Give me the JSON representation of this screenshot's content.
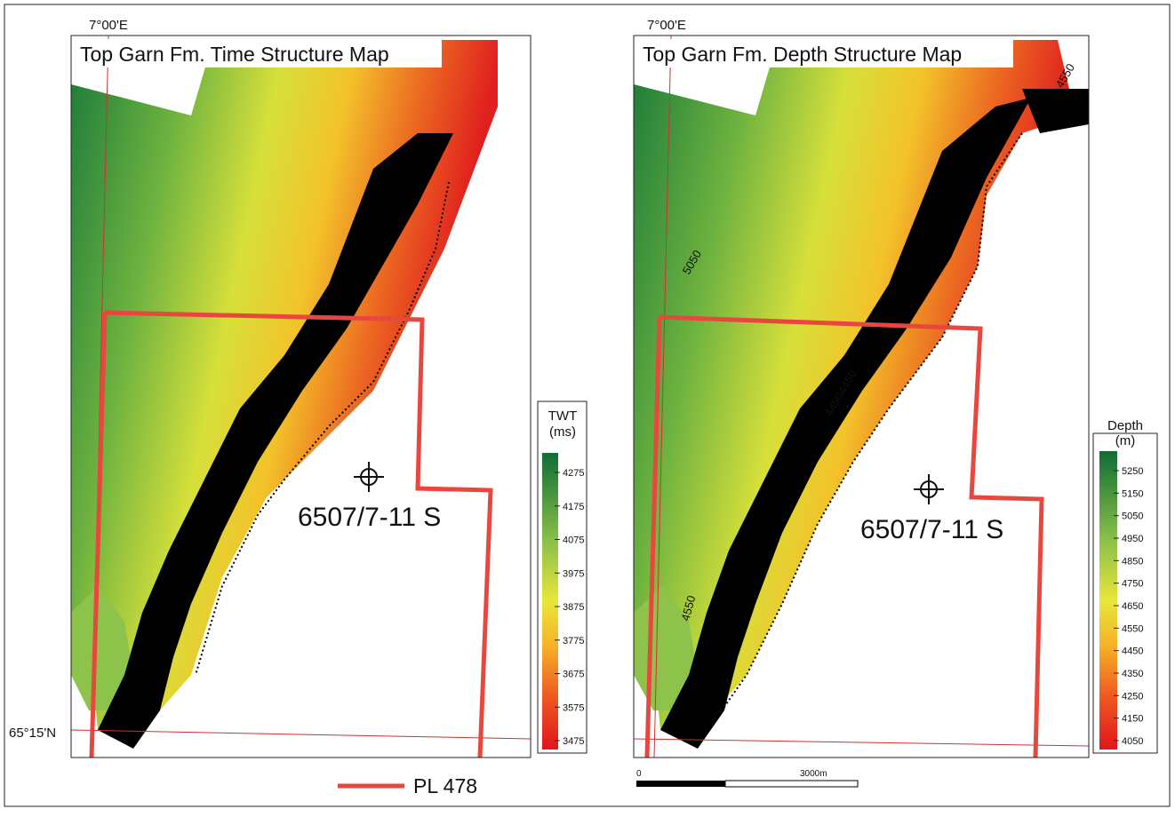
{
  "maps": [
    {
      "title": "Top Garn Fm. Time Structure Map",
      "longitude_label": "7°00'E",
      "latitude_label": "65°15'N",
      "well_label": "6507/7-11 S",
      "colorbar": {
        "title": [
          "TWT",
          "(ms)"
        ],
        "ticks": [
          4275,
          4175,
          4075,
          3975,
          3875,
          3775,
          3675,
          3575,
          3475
        ]
      }
    },
    {
      "title": "Top Garn Fm. Depth Structure Map",
      "longitude_label": "7°00'E",
      "well_label": "6507/7-11 S",
      "contour_labels": [
        "5050",
        "4550",
        "4450",
        "4450",
        "4550"
      ],
      "colorbar": {
        "title": [
          "Depth",
          "(m)"
        ],
        "ticks": [
          5250,
          5150,
          5050,
          4950,
          4850,
          4750,
          4650,
          4550,
          4450,
          4350,
          4250,
          4150,
          4050
        ]
      }
    }
  ],
  "legend": {
    "label": "PL 478"
  },
  "scale_bar": {
    "start_label": "0",
    "end_label": "3000m"
  }
}
